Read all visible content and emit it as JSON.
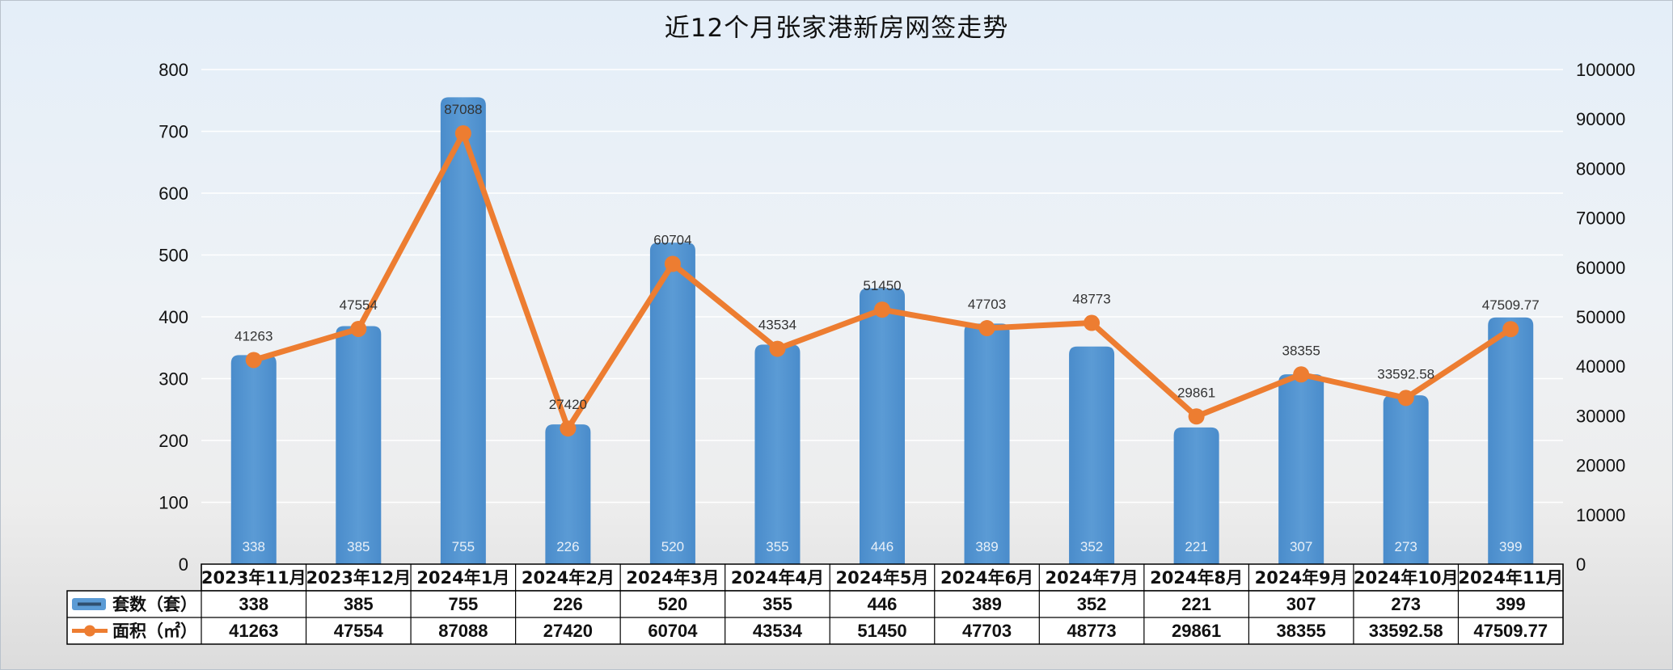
{
  "chart_data": {
    "type": "bar",
    "title": "近12个月张家港新房网签走势",
    "categories": [
      "2023年11月",
      "2023年12月",
      "2024年1月",
      "2024年2月",
      "2024年3月",
      "2024年4月",
      "2024年5月",
      "2024年6月",
      "2024年7月",
      "2024年8月",
      "2024年9月",
      "2024年10月",
      "2024年11月"
    ],
    "series": [
      {
        "name": "套数（套）",
        "type": "bar",
        "axis": "left",
        "color": "#5b9bd5",
        "values": [
          338,
          385,
          755,
          226,
          520,
          355,
          446,
          389,
          352,
          221,
          307,
          273,
          399
        ],
        "labels": [
          "338",
          "385",
          "755",
          "226",
          "520",
          "355",
          "446",
          "389",
          "352",
          "221",
          "307",
          "273",
          "399"
        ]
      },
      {
        "name": "面积（㎡）",
        "type": "line",
        "axis": "right",
        "color": "#ed7d31",
        "values": [
          41263,
          47554,
          87088,
          27420,
          60704,
          43534,
          51450,
          47703,
          48773,
          29861,
          38355,
          33592.58,
          47509.77
        ],
        "labels": [
          "41263",
          "47554",
          "87088",
          "27420",
          "60704",
          "43534",
          "51450",
          "47703",
          "48773",
          "29861",
          "38355",
          "33592.58",
          "47509.77"
        ]
      }
    ],
    "y_left": {
      "min": 0,
      "max": 800,
      "step": 100,
      "ticks": [
        "0",
        "100",
        "200",
        "300",
        "400",
        "500",
        "600",
        "700",
        "800"
      ]
    },
    "y_right": {
      "min": 0,
      "max": 100000,
      "step": 10000,
      "ticks": [
        "0",
        "10000",
        "20000",
        "30000",
        "40000",
        "50000",
        "60000",
        "70000",
        "80000",
        "90000",
        "100000"
      ]
    },
    "grid": true,
    "legend": "data-table"
  }
}
